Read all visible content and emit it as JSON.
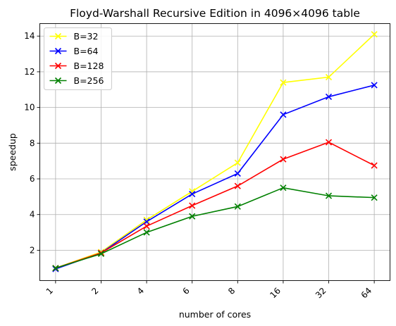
{
  "chart_data": {
    "type": "line",
    "title": "Floyd-Warshall Recursive Edition in 4096×4096 table",
    "xlabel": "number of cores",
    "ylabel": "speedup",
    "categories": [
      "1",
      "2",
      "4",
      "6",
      "8",
      "16",
      "32",
      "64"
    ],
    "yticks": [
      2,
      4,
      6,
      8,
      10,
      12,
      14
    ],
    "ylim": [
      0.3,
      14.7
    ],
    "grid": true,
    "legend_position": "top-left",
    "marker": "x",
    "series": [
      {
        "name": "B=32",
        "color": "#ffff00",
        "values": [
          1.0,
          1.9,
          3.7,
          5.3,
          6.9,
          11.4,
          11.7,
          14.1
        ]
      },
      {
        "name": "B=64",
        "color": "#0000ff",
        "values": [
          0.95,
          1.85,
          3.6,
          5.15,
          6.3,
          9.6,
          10.6,
          11.25
        ]
      },
      {
        "name": "B=128",
        "color": "#ff0000",
        "values": [
          1.0,
          1.85,
          3.35,
          4.5,
          5.6,
          7.1,
          8.05,
          6.75
        ]
      },
      {
        "name": "B=256",
        "color": "#008000",
        "values": [
          1.0,
          1.8,
          3.0,
          3.9,
          4.45,
          5.5,
          5.05,
          4.95
        ]
      }
    ]
  }
}
